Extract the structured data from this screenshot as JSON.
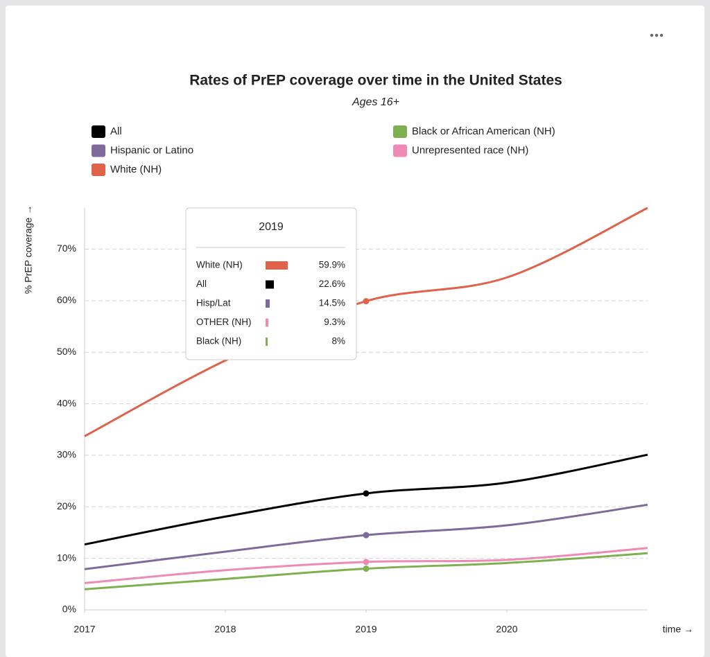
{
  "chart_data": {
    "type": "line",
    "title": "Rates of PrEP coverage over time in the United States",
    "subtitle": "Ages 16+",
    "x_label": "time →",
    "y_label": "% PrEP coverage →",
    "x": [
      2017,
      2018,
      2019,
      2020,
      2021
    ],
    "xlim": [
      2017,
      2021
    ],
    "xticks": [
      2017,
      2018,
      2019,
      2020
    ],
    "ylim": [
      0,
      78
    ],
    "yticks": [
      {
        "value": 0,
        "label": "0%"
      },
      {
        "value": 10,
        "label": "10%"
      },
      {
        "value": 20,
        "label": "20%"
      },
      {
        "value": 30,
        "label": "30%"
      },
      {
        "value": 40,
        "label": "40%"
      },
      {
        "value": 50,
        "label": "50%"
      },
      {
        "value": 60,
        "label": "60%"
      },
      {
        "value": 70,
        "label": "70%"
      }
    ],
    "grid": true,
    "series": [
      {
        "name": "All",
        "color": "#000000",
        "values": [
          12.7,
          18.1,
          22.6,
          24.7,
          30.1
        ]
      },
      {
        "name": "Black or African American (NH)",
        "color": "#7fb04f",
        "values": [
          4.0,
          6.0,
          8.0,
          9.1,
          11.0
        ]
      },
      {
        "name": "Hispanic or Latino",
        "color": "#7e6b9c",
        "values": [
          7.9,
          11.3,
          14.5,
          16.4,
          20.4
        ]
      },
      {
        "name": "Unrepresented race (NH)",
        "color": "#ef8ab5",
        "values": [
          5.2,
          7.7,
          9.3,
          9.7,
          12.0
        ]
      },
      {
        "name": "White (NH)",
        "color": "#e0624a",
        "values": [
          33.7,
          48.4,
          59.9,
          64.5,
          78.0
        ]
      }
    ],
    "tooltip": {
      "title": "2019",
      "rows": [
        {
          "label": "White (NH)",
          "value": "59.9%",
          "color": "#e0624a"
        },
        {
          "label": "All",
          "value": "22.6%",
          "color": "#000000"
        },
        {
          "label": "Hisp/Lat",
          "value": "14.5%",
          "color": "#7e6b9c"
        },
        {
          "label": "OTHER (NH)",
          "value": "9.3%",
          "color": "#ef8ab5"
        },
        {
          "label": "Black (NH)",
          "value": "8%",
          "color": "#7fb04f"
        }
      ]
    }
  }
}
